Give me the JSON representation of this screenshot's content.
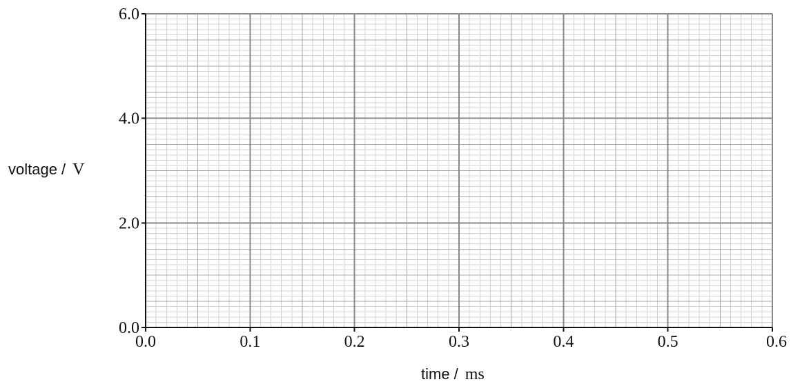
{
  "chart_data": {
    "type": "line",
    "x_axis": {
      "label_prefix": "time /",
      "label_unit": "ms",
      "range": [
        0.0,
        0.6
      ],
      "ticks": [
        0.0,
        0.1,
        0.2,
        0.3,
        0.4,
        0.5,
        0.6
      ],
      "tick_labels": [
        "0.0",
        "0.1",
        "0.2",
        "0.3",
        "0.4",
        "0.5",
        "0.6"
      ],
      "major_step": 0.1,
      "medium_step": 0.05,
      "minor_step": 0.01
    },
    "y_axis": {
      "label_prefix": "voltage /",
      "label_unit": "V",
      "range": [
        0.0,
        6.0
      ],
      "ticks": [
        0.0,
        2.0,
        4.0,
        6.0
      ],
      "tick_labels": [
        "0.0",
        "2.0",
        "4.0",
        "6.0"
      ],
      "major_step": 2.0,
      "medium_step": 0.5,
      "minor_step": 0.1
    },
    "series": [],
    "grid": true,
    "colors": {
      "minor_grid": "#d2d2d2",
      "medium_grid": "#a8a8a8",
      "major_grid": "#888888",
      "axis": "#111111"
    }
  }
}
